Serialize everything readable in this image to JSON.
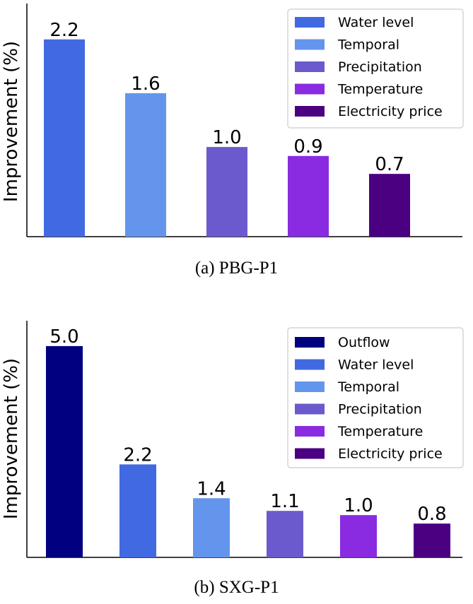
{
  "chart_data": [
    {
      "type": "bar",
      "categories": [
        "Water level",
        "Temporal",
        "Precipitation",
        "Temperature",
        "Electricity price"
      ],
      "values": [
        2.2,
        1.6,
        1.0,
        0.9,
        0.7
      ],
      "value_labels": [
        "2.2",
        "1.6",
        "1.0",
        "0.9",
        "0.7"
      ],
      "colors": [
        "#4169E1",
        "#6495ED",
        "#6A5ACD",
        "#8A2BE2",
        "#4B0082"
      ],
      "ylabel": "Improvement (%)",
      "ylim": [
        0,
        2.6
      ],
      "legend": "top-right",
      "caption": "(a)  PBG-P1"
    },
    {
      "type": "bar",
      "categories": [
        "Outflow",
        "Water level",
        "Temporal",
        "Precipitation",
        "Temperature",
        "Electricity price"
      ],
      "values": [
        5.0,
        2.2,
        1.4,
        1.1,
        1.0,
        0.8
      ],
      "value_labels": [
        "5.0",
        "2.2",
        "1.4",
        "1.1",
        "1.0",
        "0.8"
      ],
      "colors": [
        "#000080",
        "#4169E1",
        "#6495ED",
        "#6A5ACD",
        "#8A2BE2",
        "#4B0082"
      ],
      "ylabel": "Improvement (%)",
      "ylim": [
        0,
        5.6
      ],
      "legend": "top-right",
      "caption": "(b)  SXG-P1"
    }
  ]
}
